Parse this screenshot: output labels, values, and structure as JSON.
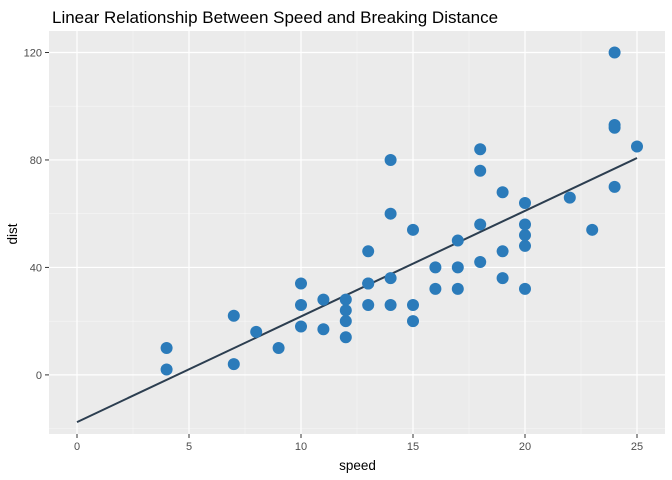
{
  "chart_data": {
    "type": "scatter",
    "title": "Linear Relationship Between Speed and Breaking Distance",
    "xlabel": "speed",
    "ylabel": "dist",
    "xlim": [
      -1.25,
      26.25
    ],
    "ylim": [
      -22,
      128
    ],
    "xticks": [
      0,
      5,
      10,
      15,
      20,
      25
    ],
    "yticks": [
      0,
      40,
      80,
      120
    ],
    "xtick_labels": [
      "0",
      "5",
      "10",
      "15",
      "20",
      "25"
    ],
    "ytick_labels": [
      "0",
      "40",
      "80",
      "120"
    ],
    "grid": true,
    "background": "#ebebeb",
    "point_color": "#2b7bba",
    "line_color": "#2c3e50",
    "series": [
      {
        "x": [
          4,
          4,
          7,
          7,
          8,
          9,
          10,
          10,
          10,
          11,
          11,
          12,
          12,
          12,
          12,
          13,
          13,
          13,
          13,
          14,
          14,
          14,
          14,
          15,
          15,
          15,
          16,
          16,
          17,
          17,
          17,
          18,
          18,
          18,
          18,
          19,
          19,
          19,
          20,
          20,
          20,
          20,
          20,
          22,
          23,
          24,
          24,
          24,
          24,
          25
        ],
        "y": [
          2,
          10,
          4,
          22,
          16,
          10,
          18,
          26,
          34,
          17,
          28,
          14,
          20,
          24,
          28,
          26,
          34,
          34,
          46,
          26,
          36,
          60,
          80,
          20,
          26,
          54,
          32,
          40,
          32,
          40,
          50,
          42,
          56,
          76,
          84,
          36,
          46,
          68,
          32,
          48,
          52,
          56,
          64,
          66,
          54,
          70,
          92,
          93,
          120,
          85
        ]
      }
    ],
    "fit_line": {
      "x": [
        0,
        25
      ],
      "y": [
        -17.58,
        80.73
      ]
    }
  }
}
